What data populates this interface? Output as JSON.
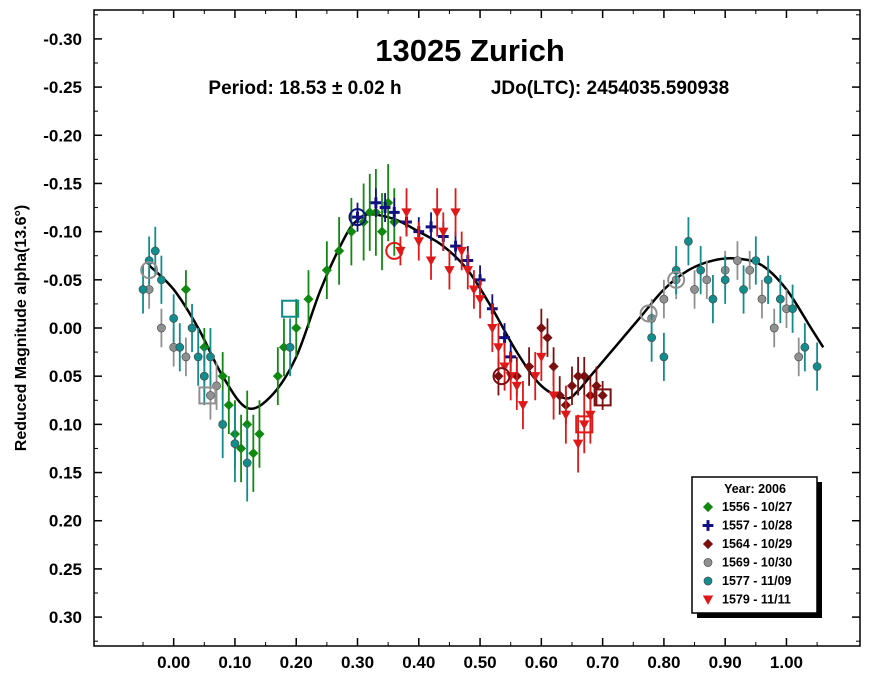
{
  "chart_data": {
    "type": "scatter",
    "title": "13025 Zurich",
    "subtitle_period": "Period: 18.53 ± 0.02 h",
    "subtitle_epoch": "JDo(LTC): 2454035.590938",
    "xlabel": "",
    "ylabel": "Reduced Magnitude alpha(13.6°)",
    "xlim": [
      -0.13,
      1.12
    ],
    "ylim": [
      0.33,
      -0.33
    ],
    "y_inverted": true,
    "x_ticks": [
      0.0,
      0.1,
      0.2,
      0.3,
      0.4,
      0.5,
      0.6,
      0.7,
      0.8,
      0.9,
      1.0
    ],
    "x_tick_labels": [
      "0.00",
      "0.10",
      "0.20",
      "0.30",
      "0.40",
      "0.50",
      "0.60",
      "0.70",
      "0.80",
      "0.90",
      "1.00"
    ],
    "y_ticks": [
      -0.3,
      -0.25,
      -0.2,
      -0.15,
      -0.1,
      -0.05,
      0.0,
      0.05,
      0.1,
      0.15,
      0.2,
      0.25,
      0.3
    ],
    "y_tick_labels": [
      "-0.30",
      "-0.25",
      "-0.20",
      "-0.15",
      "-0.10",
      "-0.05",
      "0.00",
      "0.05",
      "0.10",
      "0.15",
      "0.20",
      "0.25",
      "0.30"
    ],
    "grid": false,
    "legend": {
      "placement": "bottom-right",
      "title": "Year: 2006",
      "entries": [
        {
          "label": "1556 - 10/27",
          "marker": "diamond",
          "color": "#118811"
        },
        {
          "label": "1557 - 10/28",
          "marker": "cross",
          "color": "#101080"
        },
        {
          "label": "1564 - 10/29",
          "marker": "diamond",
          "color": "#7a1010"
        },
        {
          "label": "1569 - 10/30",
          "marker": "circle",
          "color": "#909090"
        },
        {
          "label": "1577 - 11/09",
          "marker": "circle",
          "color": "#128c8c"
        },
        {
          "label": "1579 - 11/11",
          "marker": "triangle-down",
          "color": "#e01818"
        }
      ]
    },
    "fit_curve": {
      "name": "Fourier fit",
      "color": "#000000",
      "x": [
        -0.04,
        0.0,
        0.04,
        0.08,
        0.12,
        0.16,
        0.2,
        0.24,
        0.28,
        0.3,
        0.32,
        0.36,
        0.4,
        0.44,
        0.48,
        0.52,
        0.56,
        0.6,
        0.64,
        0.66,
        0.68,
        0.72,
        0.76,
        0.8,
        0.84,
        0.88,
        0.92,
        0.96,
        1.0,
        1.04,
        1.06
      ],
      "y": [
        -0.065,
        -0.04,
        0.0,
        0.05,
        0.083,
        0.07,
        0.03,
        -0.04,
        -0.095,
        -0.112,
        -0.118,
        -0.113,
        -0.1,
        -0.085,
        -0.06,
        -0.02,
        0.025,
        0.06,
        0.073,
        0.065,
        0.05,
        0.02,
        -0.01,
        -0.04,
        -0.06,
        -0.07,
        -0.072,
        -0.065,
        -0.04,
        0.0,
        0.02
      ]
    },
    "series": [
      {
        "name": "1556 - 10/27",
        "marker": "diamond",
        "color": "#118811",
        "points": [
          [
            0.02,
            -0.04,
            0.02
          ],
          [
            0.05,
            0.02,
            0.02
          ],
          [
            0.08,
            0.05,
            0.025
          ],
          [
            0.09,
            0.08,
            0.03
          ],
          [
            0.1,
            0.11,
            0.035
          ],
          [
            0.11,
            0.125,
            0.035
          ],
          [
            0.12,
            0.1,
            0.035
          ],
          [
            0.13,
            0.13,
            0.04
          ],
          [
            0.14,
            0.11,
            0.035
          ],
          [
            0.17,
            0.05,
            0.03
          ],
          [
            0.18,
            0.02,
            0.03
          ],
          [
            0.2,
            0.0,
            0.03
          ],
          [
            0.22,
            -0.03,
            0.03
          ],
          [
            0.25,
            -0.06,
            0.03
          ],
          [
            0.27,
            -0.08,
            0.035
          ],
          [
            0.29,
            -0.1,
            0.035
          ],
          [
            0.31,
            -0.11,
            0.04
          ],
          [
            0.32,
            -0.12,
            0.04
          ],
          [
            0.33,
            -0.12,
            0.045
          ],
          [
            0.34,
            -0.1,
            0.04
          ],
          [
            0.35,
            -0.13,
            0.04
          ],
          [
            0.36,
            -0.11,
            0.035
          ]
        ]
      },
      {
        "name": "1557 - 10/28",
        "marker": "cross",
        "color": "#101080",
        "points": [
          [
            0.3,
            -0.115,
            0.015
          ],
          [
            0.33,
            -0.13,
            0.015
          ],
          [
            0.345,
            -0.125,
            0.015
          ],
          [
            0.36,
            -0.12,
            0.015
          ],
          [
            0.38,
            -0.11,
            0.015
          ],
          [
            0.4,
            -0.1,
            0.015
          ],
          [
            0.42,
            -0.105,
            0.015
          ],
          [
            0.44,
            -0.095,
            0.015
          ],
          [
            0.46,
            -0.085,
            0.015
          ],
          [
            0.48,
            -0.07,
            0.015
          ],
          [
            0.5,
            -0.05,
            0.015
          ],
          [
            0.52,
            -0.02,
            0.015
          ],
          [
            0.54,
            0.01,
            0.015
          ],
          [
            0.55,
            0.03,
            0.015
          ]
        ]
      },
      {
        "name": "1564 - 10/29",
        "marker": "diamond",
        "color": "#7a1010",
        "points": [
          [
            0.53,
            0.05,
            0.02
          ],
          [
            0.56,
            0.05,
            0.02
          ],
          [
            0.58,
            0.04,
            0.02
          ],
          [
            0.6,
            0.0,
            0.02
          ],
          [
            0.61,
            0.01,
            0.02
          ],
          [
            0.62,
            0.04,
            0.02
          ],
          [
            0.63,
            0.07,
            0.02
          ],
          [
            0.64,
            0.08,
            0.02
          ],
          [
            0.65,
            0.06,
            0.02
          ],
          [
            0.66,
            0.05,
            0.02
          ],
          [
            0.67,
            0.05,
            0.02
          ],
          [
            0.68,
            0.07,
            0.02
          ],
          [
            0.69,
            0.06,
            0.02
          ],
          [
            0.7,
            0.07,
            0.015
          ]
        ]
      },
      {
        "name": "1569 - 10/30",
        "marker": "circle",
        "color": "#909090",
        "points": [
          [
            -0.04,
            -0.04,
            0.02
          ],
          [
            -0.02,
            0.0,
            0.02
          ],
          [
            0.0,
            0.02,
            0.02
          ],
          [
            0.02,
            0.03,
            0.02
          ],
          [
            0.05,
            0.05,
            0.02
          ],
          [
            0.06,
            0.07,
            0.025
          ],
          [
            0.07,
            0.06,
            0.025
          ],
          [
            0.78,
            -0.01,
            0.02
          ],
          [
            0.8,
            -0.03,
            0.02
          ],
          [
            0.82,
            -0.05,
            0.02
          ],
          [
            0.85,
            -0.04,
            0.02
          ],
          [
            0.87,
            -0.05,
            0.02
          ],
          [
            0.9,
            -0.06,
            0.02
          ],
          [
            0.92,
            -0.07,
            0.02
          ],
          [
            0.94,
            -0.06,
            0.02
          ],
          [
            0.96,
            -0.03,
            0.02
          ],
          [
            0.98,
            0.0,
            0.02
          ],
          [
            1.0,
            -0.02,
            0.02
          ],
          [
            1.02,
            0.03,
            0.02
          ]
        ]
      },
      {
        "name": "1577 - 11/09",
        "marker": "circle",
        "color": "#128c8c",
        "points": [
          [
            -0.05,
            -0.04,
            0.025
          ],
          [
            -0.04,
            -0.07,
            0.025
          ],
          [
            -0.03,
            -0.08,
            0.025
          ],
          [
            -0.02,
            -0.05,
            0.025
          ],
          [
            0.0,
            -0.01,
            0.025
          ],
          [
            0.01,
            0.02,
            0.025
          ],
          [
            0.03,
            0.0,
            0.025
          ],
          [
            0.04,
            0.03,
            0.03
          ],
          [
            0.05,
            0.05,
            0.03
          ],
          [
            0.06,
            0.03,
            0.03
          ],
          [
            0.08,
            0.1,
            0.035
          ],
          [
            0.1,
            0.12,
            0.04
          ],
          [
            0.12,
            0.14,
            0.04
          ],
          [
            0.19,
            0.02,
            0.03
          ],
          [
            0.78,
            0.01,
            0.025
          ],
          [
            0.8,
            0.03,
            0.025
          ],
          [
            0.82,
            -0.06,
            0.025
          ],
          [
            0.84,
            -0.09,
            0.025
          ],
          [
            0.86,
            -0.06,
            0.025
          ],
          [
            0.88,
            -0.03,
            0.025
          ],
          [
            0.9,
            -0.05,
            0.025
          ],
          [
            0.93,
            -0.04,
            0.025
          ],
          [
            0.95,
            -0.07,
            0.025
          ],
          [
            0.97,
            -0.05,
            0.025
          ],
          [
            0.99,
            -0.03,
            0.025
          ],
          [
            1.01,
            -0.02,
            0.025
          ],
          [
            1.03,
            0.02,
            0.025
          ],
          [
            1.05,
            0.04,
            0.025
          ]
        ]
      },
      {
        "name": "1579 - 11/11",
        "marker": "triangle-down",
        "color": "#e01818",
        "points": [
          [
            0.37,
            -0.08,
            0.015
          ],
          [
            0.38,
            -0.12,
            0.025
          ],
          [
            0.4,
            -0.09,
            0.02
          ],
          [
            0.42,
            -0.07,
            0.02
          ],
          [
            0.43,
            -0.12,
            0.025
          ],
          [
            0.44,
            -0.1,
            0.02
          ],
          [
            0.45,
            -0.06,
            0.02
          ],
          [
            0.46,
            -0.12,
            0.025
          ],
          [
            0.47,
            -0.08,
            0.02
          ],
          [
            0.48,
            -0.06,
            0.02
          ],
          [
            0.49,
            -0.04,
            0.02
          ],
          [
            0.5,
            -0.03,
            0.02
          ],
          [
            0.52,
            0.0,
            0.025
          ],
          [
            0.53,
            0.02,
            0.025
          ],
          [
            0.54,
            0.04,
            0.025
          ],
          [
            0.55,
            0.05,
            0.025
          ],
          [
            0.56,
            0.06,
            0.025
          ],
          [
            0.57,
            0.08,
            0.025
          ],
          [
            0.59,
            0.05,
            0.025
          ],
          [
            0.6,
            0.03,
            0.025
          ],
          [
            0.62,
            0.07,
            0.025
          ],
          [
            0.64,
            0.09,
            0.03
          ],
          [
            0.66,
            0.12,
            0.03
          ],
          [
            0.67,
            0.1,
            0.03
          ],
          [
            0.68,
            0.09,
            0.03
          ]
        ]
      }
    ],
    "zero_point_markers": [
      {
        "marker": "open-circle",
        "color": "#101080",
        "x": 0.3,
        "y": -0.115
      },
      {
        "marker": "open-circle",
        "color": "#e01818",
        "x": 0.36,
        "y": -0.08
      },
      {
        "marker": "open-circle",
        "color": "#7a1010",
        "x": 0.535,
        "y": 0.05
      },
      {
        "marker": "open-circle",
        "color": "#909090",
        "x": 0.82,
        "y": -0.05
      },
      {
        "marker": "open-circle",
        "color": "#909090",
        "x": 0.775,
        "y": -0.015
      },
      {
        "marker": "open-square",
        "color": "#909090",
        "x": 0.055,
        "y": 0.07
      },
      {
        "marker": "open-square",
        "color": "#128c8c",
        "x": 0.19,
        "y": -0.02
      },
      {
        "marker": "open-square",
        "color": "#7a1010",
        "x": 0.7,
        "y": 0.072
      },
      {
        "marker": "open-square",
        "color": "#e01818",
        "x": 0.67,
        "y": 0.1
      },
      {
        "marker": "open-circle",
        "color": "#909090",
        "x": -0.04,
        "y": -0.06
      }
    ]
  }
}
